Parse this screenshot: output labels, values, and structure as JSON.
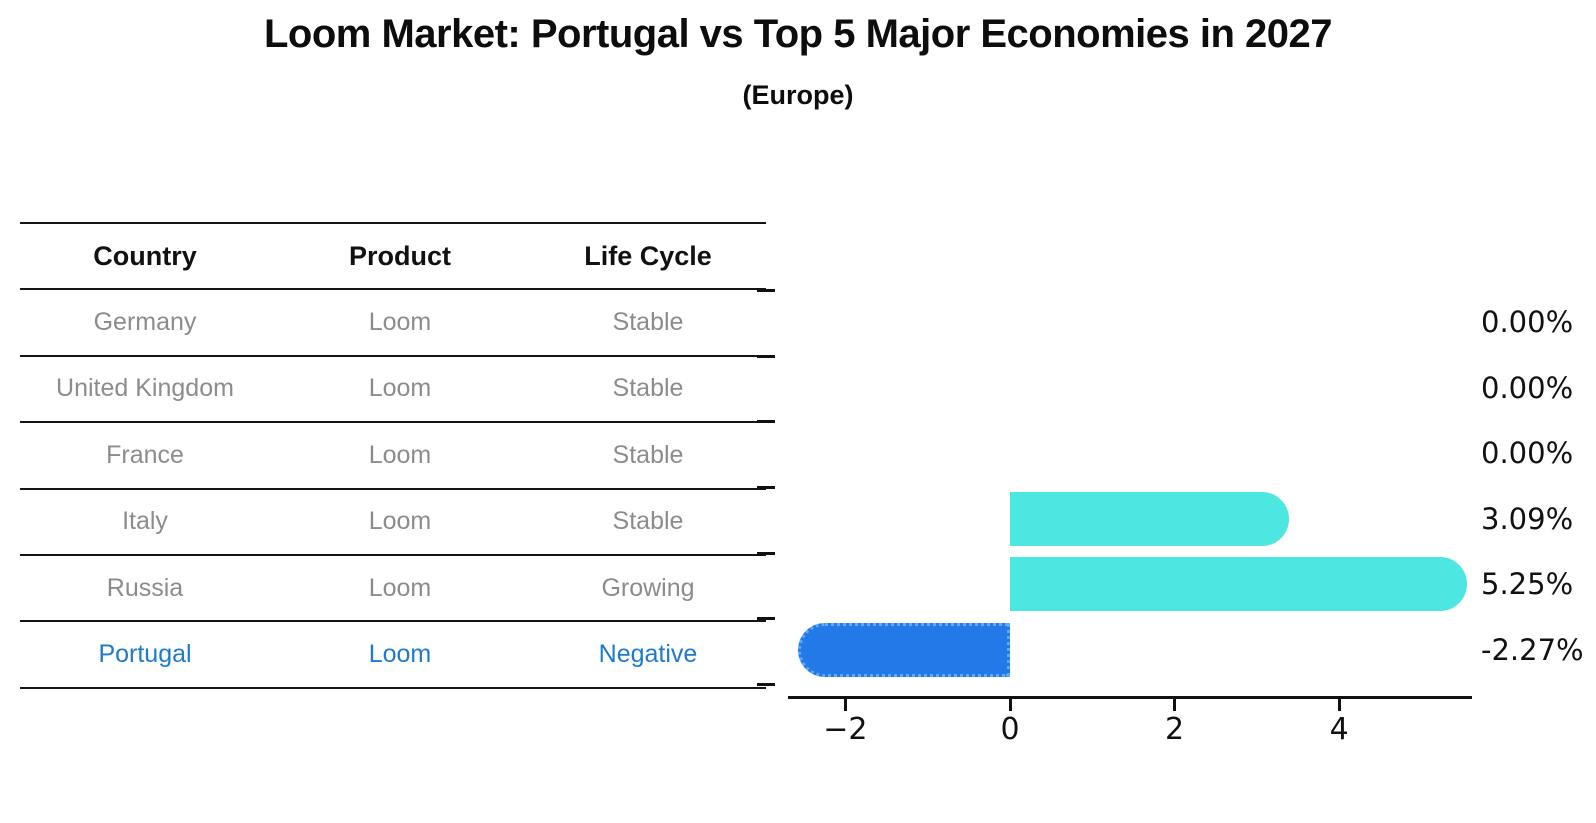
{
  "title": "Loom Market: Portugal vs Top 5 Major Economies in 2027",
  "subtitle": "(Europe)",
  "table": {
    "headers": [
      "Country",
      "Product",
      "Life Cycle"
    ],
    "rows": [
      {
        "country": "Germany",
        "product": "Loom",
        "life_cycle": "Stable",
        "highlighted": false
      },
      {
        "country": "United Kingdom",
        "product": "Loom",
        "life_cycle": "Stable",
        "highlighted": false
      },
      {
        "country": "France",
        "product": "Loom",
        "life_cycle": "Stable",
        "highlighted": false
      },
      {
        "country": "Italy",
        "product": "Loom",
        "life_cycle": "Stable",
        "highlighted": false
      },
      {
        "country": "Russia",
        "product": "Loom",
        "life_cycle": "Growing",
        "highlighted": false
      },
      {
        "country": "Portugal",
        "product": "Loom",
        "life_cycle": "Negative",
        "highlighted": true
      }
    ]
  },
  "chart_data": {
    "type": "bar",
    "orientation": "horizontal",
    "title": "Loom Market: Portugal vs Top 5 Major Economies in 2027",
    "subtitle": "(Europe)",
    "categories": [
      "Germany",
      "United Kingdom",
      "France",
      "Italy",
      "Russia",
      "Portugal"
    ],
    "values": [
      0.0,
      0.0,
      0.0,
      3.09,
      5.25,
      -2.27
    ],
    "value_labels": [
      "0.00%",
      "0.00%",
      "0.00%",
      "3.09%",
      "5.25%",
      "-2.27%"
    ],
    "xlim": [
      -2.7,
      5.6
    ],
    "x_tick_values": [
      -2,
      0,
      2,
      4
    ],
    "x_tick_labels": [
      "−2",
      "0",
      "2",
      "4"
    ],
    "grid": false,
    "legend": "none",
    "colors": {
      "positive_bar": "#4be7e0",
      "negative_bar": "#2379e8",
      "highlight_text": "#1e7acb",
      "table_text": "#8c8c8c",
      "axis_text": "#111111"
    }
  }
}
